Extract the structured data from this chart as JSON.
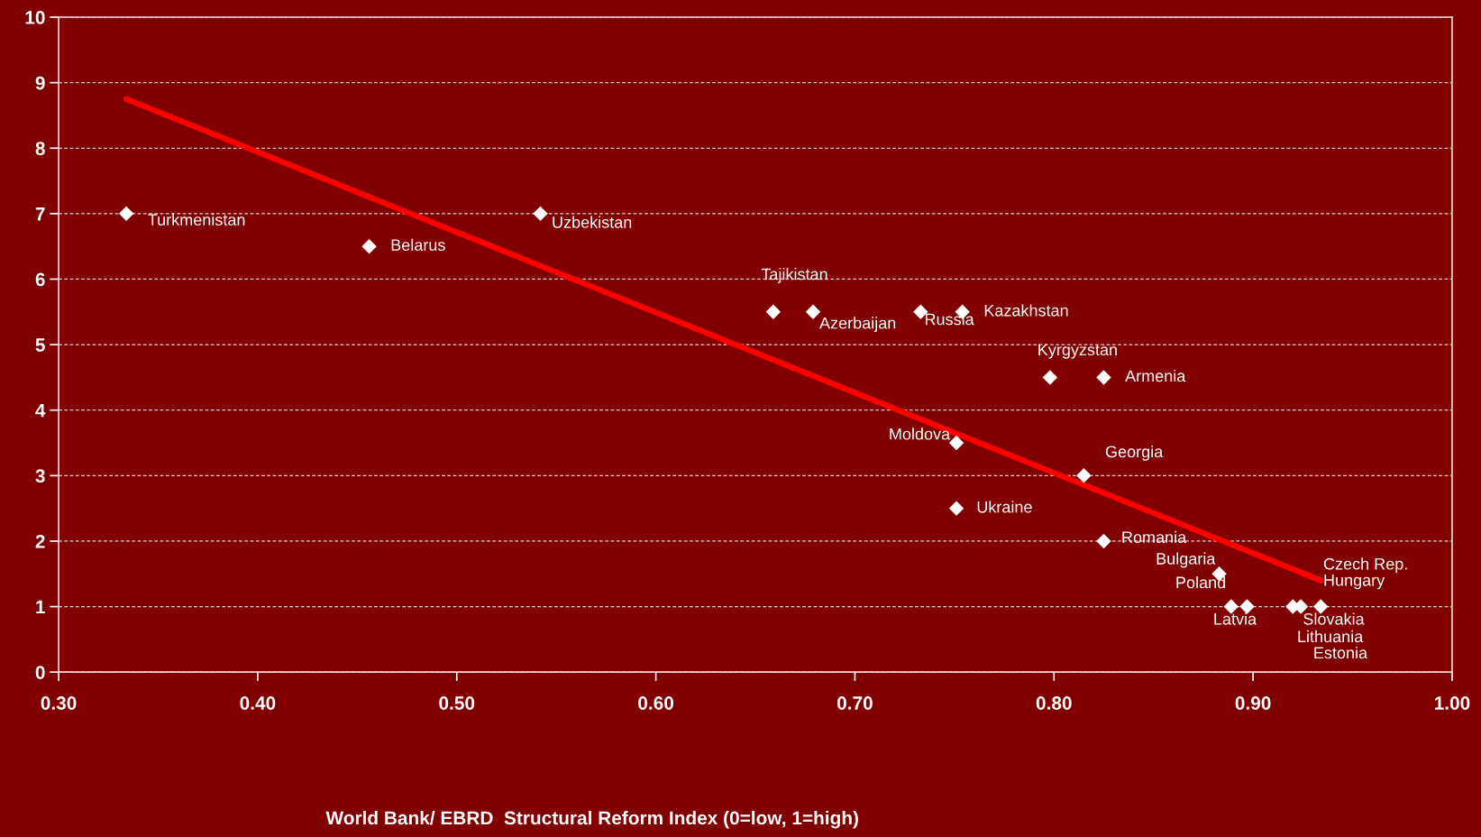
{
  "chart_data": {
    "type": "scatter",
    "xlim": [
      0.3,
      1.0
    ],
    "xticks": [
      {
        "value": 0.3,
        "label": "0.30"
      },
      {
        "value": 0.4,
        "label": "0.40"
      },
      {
        "value": 0.5,
        "label": "0.50"
      },
      {
        "value": 0.6,
        "label": "0.60"
      },
      {
        "value": 0.7,
        "label": "0.70"
      },
      {
        "value": 0.8,
        "label": "0.80"
      },
      {
        "value": 0.9,
        "label": "0.90"
      },
      {
        "value": 1.0,
        "label": "1.00"
      }
    ],
    "ylim": [
      0,
      10
    ],
    "yticks": [
      0,
      1,
      2,
      3,
      4,
      5,
      6,
      7,
      8,
      9,
      10
    ],
    "grid": "y",
    "marker": "diamond",
    "series": [
      {
        "color": "#ffffff",
        "x": [
          0.334,
          0.456,
          0.542,
          0.659,
          0.679,
          0.733,
          0.754,
          0.798,
          0.825,
          0.751,
          0.815,
          0.751,
          0.825,
          0.883,
          0.889,
          0.897,
          0.92,
          0.924,
          0.934
        ],
        "values": [
          7,
          6.5,
          7,
          5.5,
          5.5,
          5.5,
          5.5,
          4.5,
          4.5,
          3.5,
          3,
          2.5,
          2,
          1.5,
          1,
          1,
          1,
          1,
          1
        ]
      },
      {
        "type": "line",
        "color": "#ff0000",
        "line_style": "solid",
        "marker": "none",
        "x": [
          0.334,
          0.934
        ],
        "values": [
          8.75,
          1.4
        ]
      }
    ],
    "annotations": [
      {
        "text": "Turkmenistan",
        "x": 0.334,
        "y": 7
      },
      {
        "text": "Belarus",
        "x": 0.456,
        "y": 6.5
      },
      {
        "text": "Uzbekistan",
        "x": 0.542,
        "y": 7
      },
      {
        "text": "Tajikistan",
        "x": 0.659,
        "y": 5.5
      },
      {
        "text": "Azerbaijan",
        "x": 0.679,
        "y": 5.5
      },
      {
        "text": "Russia",
        "x": 0.733,
        "y": 5.5
      },
      {
        "text": "Kazakhstan",
        "x": 0.754,
        "y": 5.5
      },
      {
        "text": "Kyrgyzstan",
        "x": 0.798,
        "y": 4.5
      },
      {
        "text": "Armenia",
        "x": 0.825,
        "y": 4.5
      },
      {
        "text": "Moldova",
        "x": 0.751,
        "y": 3.5
      },
      {
        "text": "Georgia",
        "x": 0.815,
        "y": 3
      },
      {
        "text": "Ukraine",
        "x": 0.751,
        "y": 2.5
      },
      {
        "text": "Romania",
        "x": 0.825,
        "y": 2
      },
      {
        "text": "Bulgaria",
        "x": 0.883,
        "y": 1.5
      },
      {
        "text": "Poland",
        "x": 0.883,
        "y": 1.5
      },
      {
        "text": "Latvia",
        "x": 0.889,
        "y": 1
      },
      {
        "text": "Slovakia",
        "x": 0.92,
        "y": 1
      },
      {
        "text": "Lithuania",
        "x": 0.924,
        "y": 1
      },
      {
        "text": "Estonia",
        "x": 0.934,
        "y": 1
      },
      {
        "text": "Czech Rep.",
        "x": 0.934,
        "y": 1
      },
      {
        "text": "Hungary",
        "x": 0.934,
        "y": 1
      },
      "World Bank/ EBRD  Structural Reform Index (0=low, 1=high)"
    ]
  }
}
